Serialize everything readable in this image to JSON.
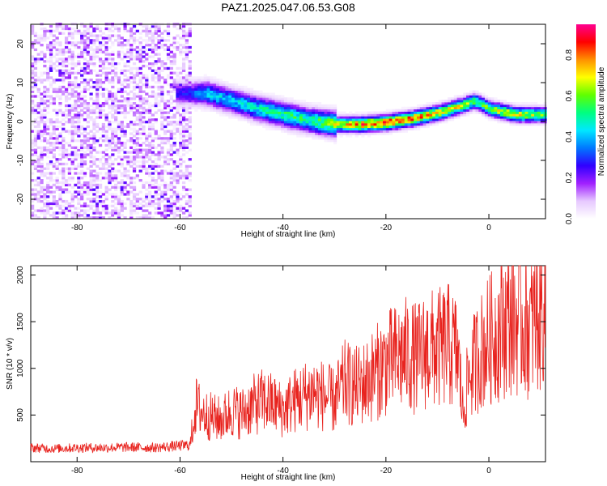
{
  "title": "PAZ1.2025.047.06.53.G08",
  "colors": {
    "snr_line": "#e8231e",
    "axis": "#000000",
    "colormap": [
      "#ffffff",
      "#e6c8ff",
      "#a020ff",
      "#3000ff",
      "#0078ff",
      "#00e8ff",
      "#00ff80",
      "#60ff00",
      "#ffff00",
      "#ff9000",
      "#ff0000",
      "#ff0090"
    ]
  },
  "chart_data": [
    {
      "type": "heatmap",
      "title": "",
      "xlabel": "Height of straight line (km)",
      "ylabel": "Frequency (Hz)",
      "xlim": [
        -89,
        11
      ],
      "ylim": [
        -25,
        25
      ],
      "x_ticks": [
        "-80",
        "-60",
        "-40",
        "-20",
        "0"
      ],
      "y_ticks": [
        "20",
        "10",
        "0",
        "-10",
        "-20"
      ],
      "colorbar": {
        "label": "Normalized spectral amplitude",
        "range": [
          0,
          0.95
        ],
        "ticks": [
          "0.0",
          "0.2",
          "0.4",
          "0.6",
          "0.8"
        ]
      },
      "noise_region_x": [
        -89,
        -58
      ],
      "ridge": {
        "x": [
          -58,
          -55,
          -50,
          -45,
          -40,
          -35,
          -30,
          -25,
          -20,
          -15,
          -10,
          -5,
          -3,
          0,
          5,
          11
        ],
        "frequency": [
          7,
          7,
          5,
          3,
          1.5,
          0,
          -1,
          -1,
          -0.5,
          0.5,
          2,
          4,
          5,
          3,
          1.5,
          1.5
        ],
        "amplitude": [
          0.3,
          0.45,
          0.45,
          0.5,
          0.55,
          0.55,
          0.7,
          0.85,
          0.9,
          0.85,
          0.75,
          0.7,
          0.6,
          0.65,
          0.75,
          0.6
        ]
      }
    },
    {
      "type": "line",
      "title": "",
      "xlabel": "Height of straight line (km)",
      "ylabel": "SNR (10 * v/v)",
      "xlim": [
        -89,
        11
      ],
      "ylim": [
        0,
        2100
      ],
      "x_ticks": [
        "-80",
        "-60",
        "-40",
        "-20",
        "0"
      ],
      "y_ticks": [
        "2000",
        "1500",
        "1000",
        "500"
      ],
      "series": [
        {
          "x": [
            -89,
            -85,
            -80,
            -75,
            -70,
            -65,
            -60,
            -58,
            -57,
            -55,
            -52,
            -50,
            -48,
            -46,
            -44,
            -42,
            -40,
            -38,
            -36,
            -34,
            -32,
            -30,
            -28,
            -26,
            -24,
            -22,
            -20,
            -18,
            -16,
            -14,
            -12,
            -10,
            -8,
            -6,
            -5,
            -4,
            -2,
            0,
            2,
            4,
            6,
            8,
            10,
            11
          ],
          "values": [
            150,
            140,
            150,
            150,
            155,
            150,
            170,
            180,
            600,
            500,
            450,
            550,
            520,
            600,
            650,
            620,
            550,
            650,
            700,
            750,
            700,
            650,
            850,
            800,
            850,
            950,
            1050,
            1100,
            1150,
            1100,
            1200,
            1200,
            1250,
            1150,
            500,
            900,
            1150,
            1300,
            1400,
            1550,
            1500,
            1450,
            1600,
            1800
          ]
        }
      ]
    }
  ]
}
